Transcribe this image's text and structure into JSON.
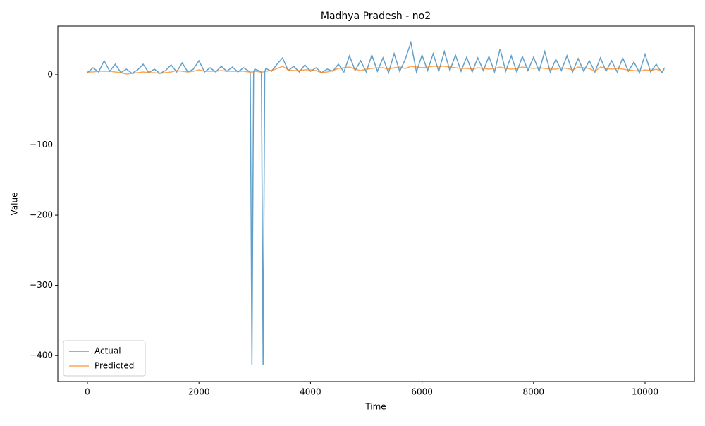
{
  "chart_data": {
    "type": "line",
    "title": "Madhya Pradesh - no2",
    "x_label": "Time",
    "y_label": "Value",
    "x": [
      0,
      100,
      200,
      300,
      400,
      500,
      600,
      700,
      800,
      900,
      1000,
      1100,
      1200,
      1300,
      1400,
      1500,
      1600,
      1700,
      1800,
      1900,
      2000,
      2100,
      2200,
      2300,
      2400,
      2500,
      2600,
      2700,
      2800,
      2900,
      2920,
      2950,
      2980,
      3000,
      3100,
      3120,
      3150,
      3180,
      3200,
      3300,
      3400,
      3500,
      3600,
      3700,
      3800,
      3900,
      4000,
      4100,
      4200,
      4300,
      4400,
      4500,
      4600,
      4700,
      4800,
      4900,
      5000,
      5100,
      5200,
      5300,
      5400,
      5500,
      5600,
      5700,
      5800,
      5900,
      6000,
      6100,
      6200,
      6300,
      6400,
      6500,
      6600,
      6700,
      6800,
      6900,
      7000,
      7100,
      7200,
      7300,
      7400,
      7500,
      7600,
      7700,
      7800,
      7900,
      8000,
      8100,
      8200,
      8300,
      8400,
      8500,
      8600,
      8700,
      8800,
      8900,
      9000,
      9100,
      9200,
      9300,
      9400,
      9500,
      9600,
      9700,
      9800,
      9900,
      10000,
      10100,
      10200,
      10300,
      10350
    ],
    "series": [
      {
        "name": "Actual",
        "color": "#1f77b4",
        "values": [
          3,
          10,
          4,
          20,
          5,
          15,
          3,
          8,
          2,
          7,
          15,
          3,
          8,
          2,
          6,
          14,
          4,
          17,
          4,
          8,
          20,
          4,
          10,
          4,
          12,
          5,
          11,
          4,
          10,
          5,
          3,
          -413,
          4,
          8,
          5,
          3,
          -413,
          4,
          9,
          5,
          15,
          24,
          6,
          12,
          4,
          14,
          5,
          10,
          3,
          8,
          5,
          15,
          4,
          27,
          6,
          20,
          4,
          28,
          5,
          24,
          3,
          30,
          5,
          22,
          46,
          4,
          28,
          6,
          30,
          5,
          33,
          6,
          28,
          5,
          25,
          4,
          24,
          6,
          26,
          4,
          37,
          5,
          27,
          4,
          26,
          6,
          25,
          5,
          33,
          4,
          22,
          6,
          27,
          4,
          23,
          5,
          20,
          4,
          24,
          5,
          20,
          4,
          24,
          5,
          18,
          3,
          29,
          4,
          15,
          3,
          10
        ]
      },
      {
        "name": "Predicted",
        "color": "#ff7f0e",
        "values": [
          4,
          4,
          5,
          5,
          5,
          4,
          3,
          1,
          2,
          3,
          4,
          3,
          3,
          2,
          3,
          4,
          6,
          5,
          4,
          5,
          7,
          5,
          5,
          5,
          6,
          5,
          5,
          5,
          5,
          4,
          4,
          4,
          4,
          5,
          4,
          4,
          4,
          5,
          5,
          6,
          9,
          12,
          7,
          6,
          6,
          7,
          7,
          6,
          3,
          4,
          6,
          9,
          10,
          11,
          8,
          6,
          8,
          9,
          10,
          10,
          8,
          10,
          11,
          9,
          12,
          11,
          10,
          11,
          12,
          12,
          12,
          11,
          10,
          9,
          9,
          8,
          10,
          9,
          8,
          9,
          11,
          9,
          8,
          9,
          11,
          10,
          9,
          10,
          9,
          8,
          8,
          10,
          9,
          7,
          11,
          10,
          9,
          5,
          11,
          9,
          8,
          9,
          8,
          7,
          6,
          5,
          7,
          6,
          8,
          5,
          6
        ]
      }
    ],
    "xlim": [
      -531,
      10885
    ],
    "ylim": [
      -437,
      69.3
    ],
    "xticks": [
      0,
      2000,
      4000,
      6000,
      8000,
      10000
    ],
    "yticks": [
      {
        "value": -400,
        "label": "−400"
      },
      {
        "value": -300,
        "label": "−300"
      },
      {
        "value": -200,
        "label": "−200"
      },
      {
        "value": -100,
        "label": "−100"
      },
      0
    ],
    "legend": "lower left"
  }
}
